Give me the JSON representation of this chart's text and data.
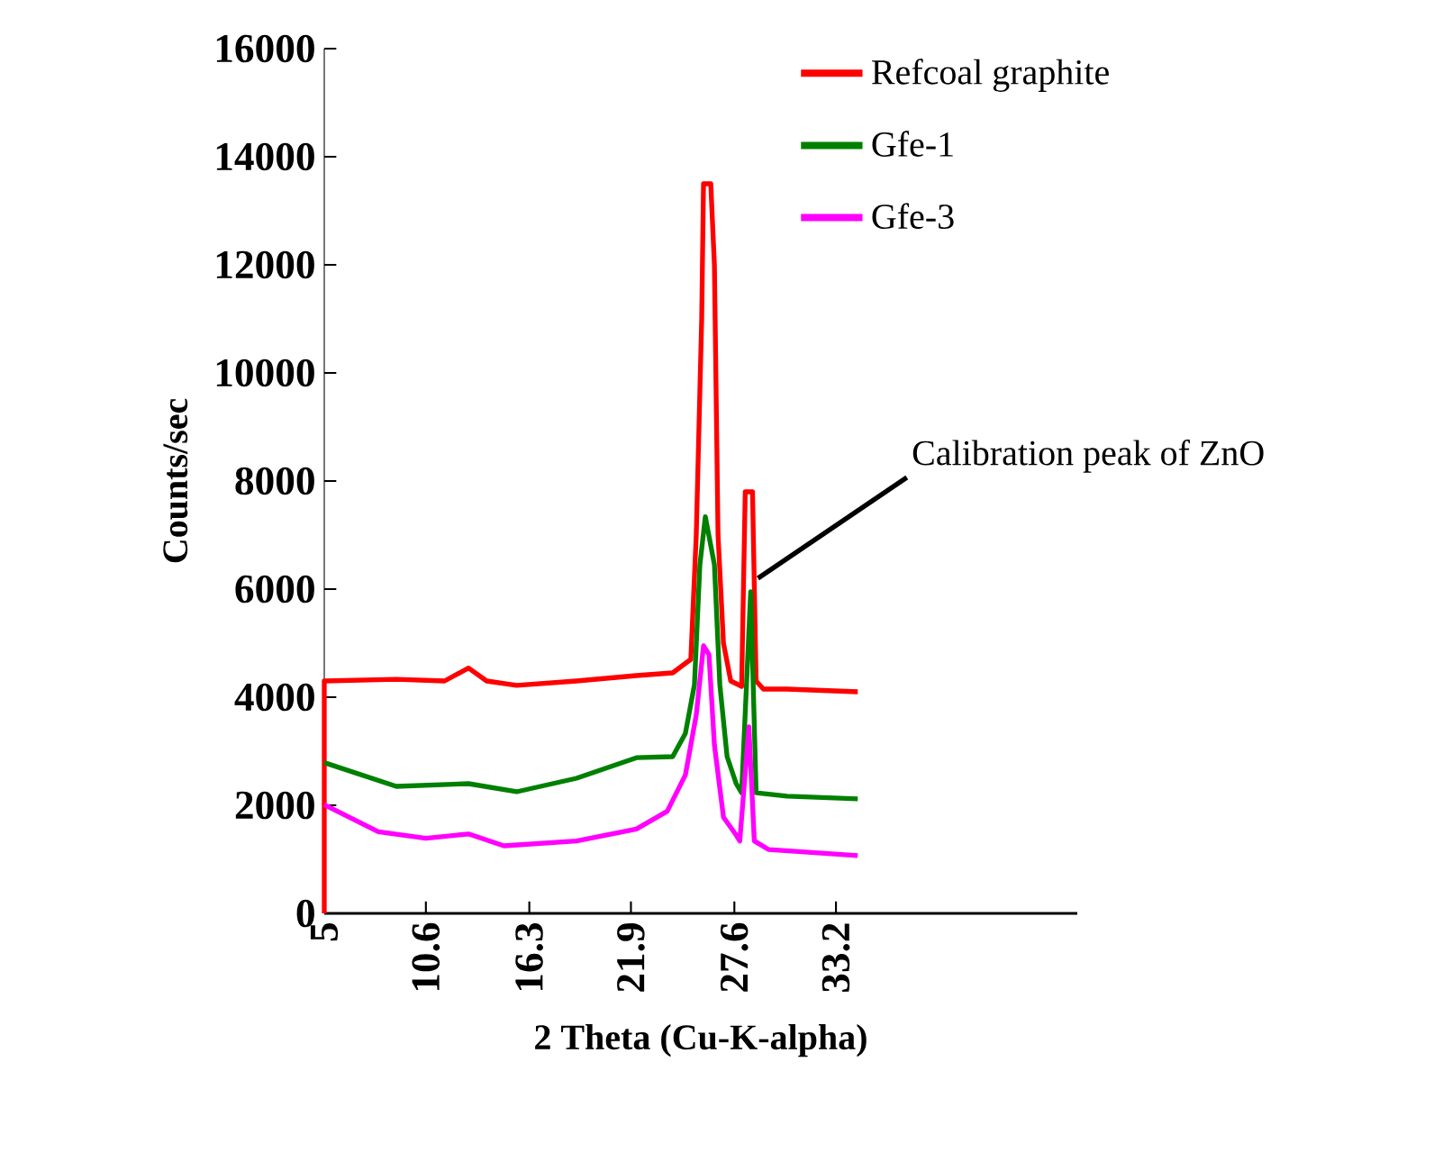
{
  "chart_data": {
    "type": "line",
    "xlabel": "2 Theta (Cu-K-alpha)",
    "ylabel": "Counts/sec",
    "xlim": [
      5,
      46.5
    ],
    "xticks": [
      5,
      10.6,
      16.3,
      21.9,
      27.6,
      33.2
    ],
    "ylim": [
      0,
      16000
    ],
    "yticks": [
      0,
      2000,
      4000,
      6000,
      8000,
      10000,
      12000,
      14000,
      16000
    ],
    "legend": "top right",
    "marker": "none",
    "line_style": "solid",
    "grid": false,
    "annotations": [
      {
        "text": "Calibration peak of ZnO",
        "x": 28.9,
        "y": 6200
      }
    ],
    "series": [
      {
        "name": "Refcoal graphite",
        "color": "#ff0000",
        "x": [
          5,
          5,
          8.97,
          11.63,
          12.95,
          13.95,
          15.6,
          18.9,
          22.2,
          24.2,
          25.2,
          25.5,
          25.8,
          25.9,
          26.3,
          26.5,
          26.7,
          27.0,
          27.4,
          28.0,
          28.2,
          28.6,
          28.8,
          29.2,
          30.5,
          34.4
        ],
        "values": [
          0,
          4300,
          4330,
          4300,
          4540,
          4300,
          4220,
          4300,
          4400,
          4450,
          4700,
          7000,
          11000,
          13500,
          13500,
          12000,
          7000,
          5000,
          4300,
          4200,
          7800,
          7800,
          4300,
          4150,
          4150,
          4100
        ]
      },
      {
        "name": "Gfe-1",
        "color": "#008000",
        "x": [
          5,
          8.97,
          12.95,
          15.6,
          18.9,
          22.2,
          24.2,
          24.9,
          25.4,
          25.7,
          26.0,
          26.5,
          26.8,
          27.2,
          27.7,
          28.0,
          28.5,
          28.8,
          30.5,
          34.4
        ],
        "values": [
          2790,
          2350,
          2400,
          2250,
          2500,
          2880,
          2900,
          3330,
          4230,
          6450,
          7340,
          6450,
          4230,
          2900,
          2400,
          2230,
          5950,
          2230,
          2170,
          2120
        ]
      },
      {
        "name": "Gfe-3",
        "color": "#ff00ff",
        "x": [
          5,
          7.98,
          10.6,
          12.95,
          14.9,
          18.9,
          22.2,
          23.9,
          24.9,
          25.5,
          25.9,
          26.2,
          26.5,
          27.0,
          27.7,
          27.9,
          28.4,
          28.7,
          29.5,
          34.4
        ],
        "values": [
          2010,
          1510,
          1390,
          1470,
          1250,
          1340,
          1560,
          1890,
          2560,
          3670,
          4950,
          4790,
          3120,
          1780,
          1450,
          1340,
          3450,
          1340,
          1180,
          1070
        ]
      }
    ]
  }
}
